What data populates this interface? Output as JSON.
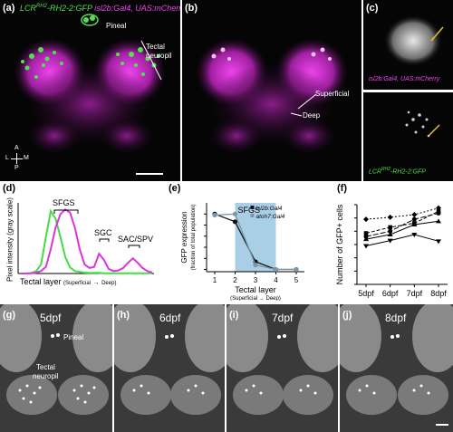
{
  "panels": {
    "a": {
      "label": "(a)",
      "title_green": "LCR",
      "title_green_sup": "RH2",
      "title_green_rest": "-RH2-2:GFP",
      "title_magenta": "isl2b:Gal4, UAS:mCherry",
      "pineal": "Pineal",
      "tectal": "Tectal",
      "neuropil": "neuropil",
      "compass_a": "A",
      "compass_p": "P",
      "compass_l": "L",
      "compass_m": "M"
    },
    "b": {
      "label": "(b)",
      "superficial": "Superficial",
      "deep": "Deep"
    },
    "c": {
      "label": "(c)",
      "top_caption": "isl2b:Gal4, UAS:mCherry",
      "bottom_caption_a": "LCR",
      "bottom_caption_sup": "RH2",
      "bottom_caption_b": "-RH2-2:GFP"
    },
    "d": {
      "label": "(d)",
      "ylabel": "Pixel intensity (gray scale)",
      "xlabel_main": "Tectal layer",
      "xlabel_sub": "(Superficial",
      "xlabel_arrow": "→",
      "xlabel_end": "Deep)",
      "annotations": [
        "SFGS",
        "SGC",
        "SAC/SPV"
      ]
    },
    "e": {
      "label": "(e)"
    },
    "f": {
      "label": "(f)"
    },
    "g": {
      "label": "(g)",
      "day": "5dpf",
      "pineal": "Pineal",
      "tectal": "Tectal",
      "neuropil": "neuropil"
    },
    "h": {
      "label": "(h)",
      "day": "6dpf"
    },
    "i": {
      "label": "(i)",
      "day": "7dpf"
    },
    "j": {
      "label": "(j)",
      "day": "8dpf"
    }
  },
  "chart_data": [
    {
      "panel": "e",
      "type": "line",
      "xlabel": "Tectal layer",
      "xlabel_sub": "(Superficial → Deep)",
      "ylabel": "GFP expression",
      "ylabel_sub": "(fraction of total population)",
      "x": [
        1,
        2,
        3,
        4,
        5
      ],
      "xlim": [
        0.6,
        5.4
      ],
      "ylim": [
        -0.02,
        0.6
      ],
      "yticks": [
        0,
        0.1,
        0.2,
        0.3,
        0.4,
        0.5
      ],
      "shaded_region": {
        "label": "SFGS",
        "x_start": 2,
        "x_end": 4,
        "color": "#a9cfe6"
      },
      "series": [
        {
          "name": "isl2b:Gal4",
          "color": "#111111",
          "values": [
            0.5,
            0.43,
            0.07,
            0.0,
            0.0
          ]
        },
        {
          "name": "atoh7:Gal4",
          "color": "#7f95aa",
          "values": [
            0.49,
            0.5,
            0.04,
            0.0,
            0.0
          ]
        }
      ]
    },
    {
      "panel": "f",
      "type": "line",
      "xlabel": "",
      "ylabel": "Number of GFP+ cells",
      "categories": [
        "5dpf",
        "6dpf",
        "7dpf",
        "8dpf"
      ],
      "ylim": [
        0,
        120
      ],
      "yticks": [
        0,
        20,
        40,
        60,
        80,
        100,
        120
      ],
      "series": [
        {
          "marker": "diamond",
          "dash": "2,2",
          "values": [
            98,
            101,
            105,
            115
          ]
        },
        {
          "marker": "square",
          "dash": "4,2",
          "values": [
            77,
            86,
            92,
            110
          ]
        },
        {
          "marker": "circle",
          "dash": "6,2",
          "values": [
            72,
            80,
            98,
            107
          ]
        },
        {
          "marker": "triangle",
          "dash": "",
          "values": [
            68,
            75,
            90,
            95
          ]
        },
        {
          "marker": "triangle-down",
          "dash": "",
          "values": [
            58,
            66,
            75,
            65
          ]
        }
      ]
    },
    {
      "panel": "d",
      "type": "line",
      "xlabel": "Tectal layer (Superficial → Deep)",
      "ylabel": "Pixel intensity (gray scale)",
      "series": [
        {
          "color": "#44dd44",
          "values": [
            0,
            0,
            2,
            8,
            30,
            120,
            205,
            180,
            120,
            55,
            20,
            8,
            5,
            3,
            2,
            2,
            2,
            1,
            1,
            1,
            1,
            1,
            1,
            1,
            1,
            1,
            1,
            1
          ]
        },
        {
          "color": "#dd33dd",
          "values": [
            0,
            0,
            1,
            3,
            8,
            22,
            80,
            150,
            195,
            210,
            200,
            150,
            80,
            30,
            18,
            22,
            65,
            45,
            15,
            8,
            10,
            18,
            35,
            50,
            35,
            18,
            8,
            3
          ]
        }
      ]
    }
  ]
}
